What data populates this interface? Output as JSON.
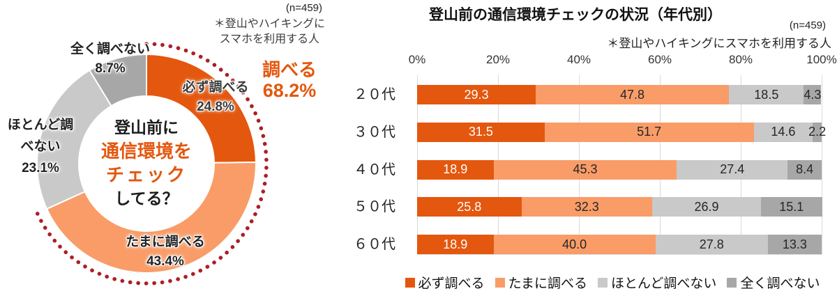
{
  "colors": {
    "series": [
      "#E4570E",
      "#F99C68",
      "#C9C9C9",
      "#A7A7A7"
    ],
    "accent_orange": "#E4570E",
    "dotted_red": "#AC1F24",
    "gridline": "#DADADA",
    "value_text_dark": "#262626",
    "value_text_light": "#FFFFFF"
  },
  "donut": {
    "n_label": "(n=459)",
    "note_line1": "＊登山やハイキングに",
    "note_line2": "スマホを利用する人",
    "center_line1": "登山前に",
    "center_line2": "通信環境を",
    "center_line3": "チェック",
    "center_line4": "してる？",
    "callout_label": "調べる",
    "callout_value": "68.2%",
    "labels": {
      "always_name": "必ず調べる",
      "always_pct": "24.8%",
      "sometimes_name": "たまに調べる",
      "sometimes_pct": "43.4%",
      "hardly_name1": "ほとんど調",
      "hardly_name2": "べない",
      "hardly_pct": "23.1%",
      "never_name": "全く調べない",
      "never_pct": "8.7%"
    }
  },
  "bar_chart": {
    "title": "登山前の通信環境チェックの状況（年代別）",
    "n_label": "(n=459)",
    "note": "＊登山やハイキングにスマホを利用する人",
    "axis_ticks": [
      "0%",
      "20%",
      "40%",
      "60%",
      "80%",
      "100%"
    ],
    "rows": [
      {
        "label": "２０代",
        "values": [
          "29.3",
          "47.8",
          "18.5",
          "4.3"
        ]
      },
      {
        "label": "３０代",
        "values": [
          "31.5",
          "51.7",
          "14.6",
          "2.2"
        ]
      },
      {
        "label": "４０代",
        "values": [
          "18.9",
          "45.3",
          "27.4",
          "8.4"
        ]
      },
      {
        "label": "５０代",
        "values": [
          "25.8",
          "32.3",
          "26.9",
          "15.1"
        ]
      },
      {
        "label": "６０代",
        "values": [
          "18.9",
          "40.0",
          "27.8",
          "13.3"
        ]
      }
    ],
    "legend": [
      {
        "label": "必ず調べる"
      },
      {
        "label": "たまに調べる"
      },
      {
        "label": "ほとんど調べない"
      },
      {
        "label": "全く調べない"
      }
    ]
  },
  "chart_data": [
    {
      "type": "pie",
      "donut": true,
      "title": "登山前に通信環境をチェックしてる？",
      "labels": [
        "必ず調べる",
        "たまに調べる",
        "ほとんど調べない",
        "全く調べない"
      ],
      "values": [
        24.8,
        43.4,
        23.1,
        8.7
      ],
      "annotation": "調べる 68.2%（必ず調べる＋たまに調べる）",
      "n": 459,
      "note": "＊登山やハイキングにスマホを利用する人",
      "start_angle_deg": 0,
      "direction": "clockwise"
    },
    {
      "type": "bar",
      "orientation": "horizontal-stacked",
      "title": "登山前の通信環境チェックの状況（年代別）",
      "categories": [
        "２０代",
        "３０代",
        "４０代",
        "５０代",
        "６０代"
      ],
      "series": [
        {
          "name": "必ず調べる",
          "values": [
            29.3,
            31.5,
            18.9,
            25.8,
            18.9
          ]
        },
        {
          "name": "たまに調べる",
          "values": [
            47.8,
            51.7,
            45.3,
            32.3,
            40.0
          ]
        },
        {
          "name": "ほとんど調べない",
          "values": [
            18.5,
            14.6,
            27.4,
            26.9,
            27.8
          ]
        },
        {
          "name": "全く調べない",
          "values": [
            4.3,
            2.2,
            8.4,
            15.1,
            13.3
          ]
        }
      ],
      "xlim": [
        0,
        100
      ],
      "tick_labels": [
        "0%",
        "20%",
        "40%",
        "60%",
        "80%",
        "100%"
      ],
      "grid": true,
      "legend_position": "bottom",
      "n": 459,
      "note": "＊登山やハイキングにスマホを利用する人"
    }
  ]
}
